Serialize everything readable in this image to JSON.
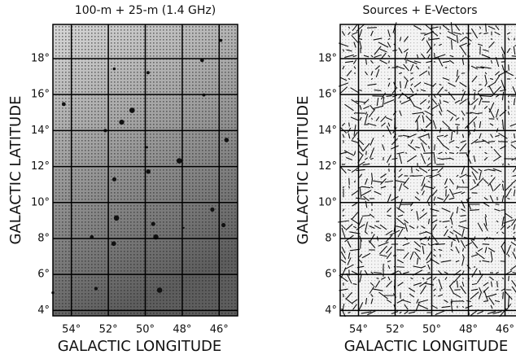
{
  "chart_data": [
    {
      "type": "image",
      "title": "100-m + 25-m (1.4 GHz)",
      "x_label": "GALACTIC LONGITUDE",
      "y_label": "GALACTIC LATITUDE",
      "xlim": [
        55,
        45
      ],
      "ylim": [
        3.7,
        19.9
      ],
      "xticks": [
        {
          "value": 54,
          "label": "54°"
        },
        {
          "value": 52,
          "label": "52°"
        },
        {
          "value": 50,
          "label": "50°"
        },
        {
          "value": 48,
          "label": "48°"
        },
        {
          "value": 46,
          "label": "46°"
        }
      ],
      "yticks": [
        {
          "value": 4,
          "label": "4°"
        },
        {
          "value": 6,
          "label": "6°"
        },
        {
          "value": 8,
          "label": "8°"
        },
        {
          "value": 10,
          "label": "10°"
        },
        {
          "value": 12,
          "label": "12°"
        },
        {
          "value": 14,
          "label": "14°"
        },
        {
          "value": 16,
          "label": "16°"
        },
        {
          "value": 18,
          "label": "18°"
        }
      ],
      "grid": true
    },
    {
      "type": "vectors",
      "title": "Sources + E-Vectors",
      "x_label": "GALACTIC LONGITUDE",
      "y_label": "GALACTIC LATITUDE",
      "xlim": [
        55,
        45
      ],
      "ylim": [
        3.7,
        19.9
      ],
      "xticks": [
        {
          "value": 54,
          "label": "54°"
        },
        {
          "value": 52,
          "label": "52°"
        },
        {
          "value": 50,
          "label": "50°"
        },
        {
          "value": 48,
          "label": "48°"
        },
        {
          "value": 46,
          "label": "46°"
        }
      ],
      "yticks": [
        {
          "value": 4,
          "label": "4°"
        },
        {
          "value": 6,
          "label": "6°"
        },
        {
          "value": 8,
          "label": "8°"
        },
        {
          "value": 10,
          "label": "10°"
        },
        {
          "value": 12,
          "label": "12°"
        },
        {
          "value": 14,
          "label": "14°"
        },
        {
          "value": 16,
          "label": "16°"
        },
        {
          "value": 18,
          "label": "18°"
        }
      ],
      "grid": true
    }
  ]
}
